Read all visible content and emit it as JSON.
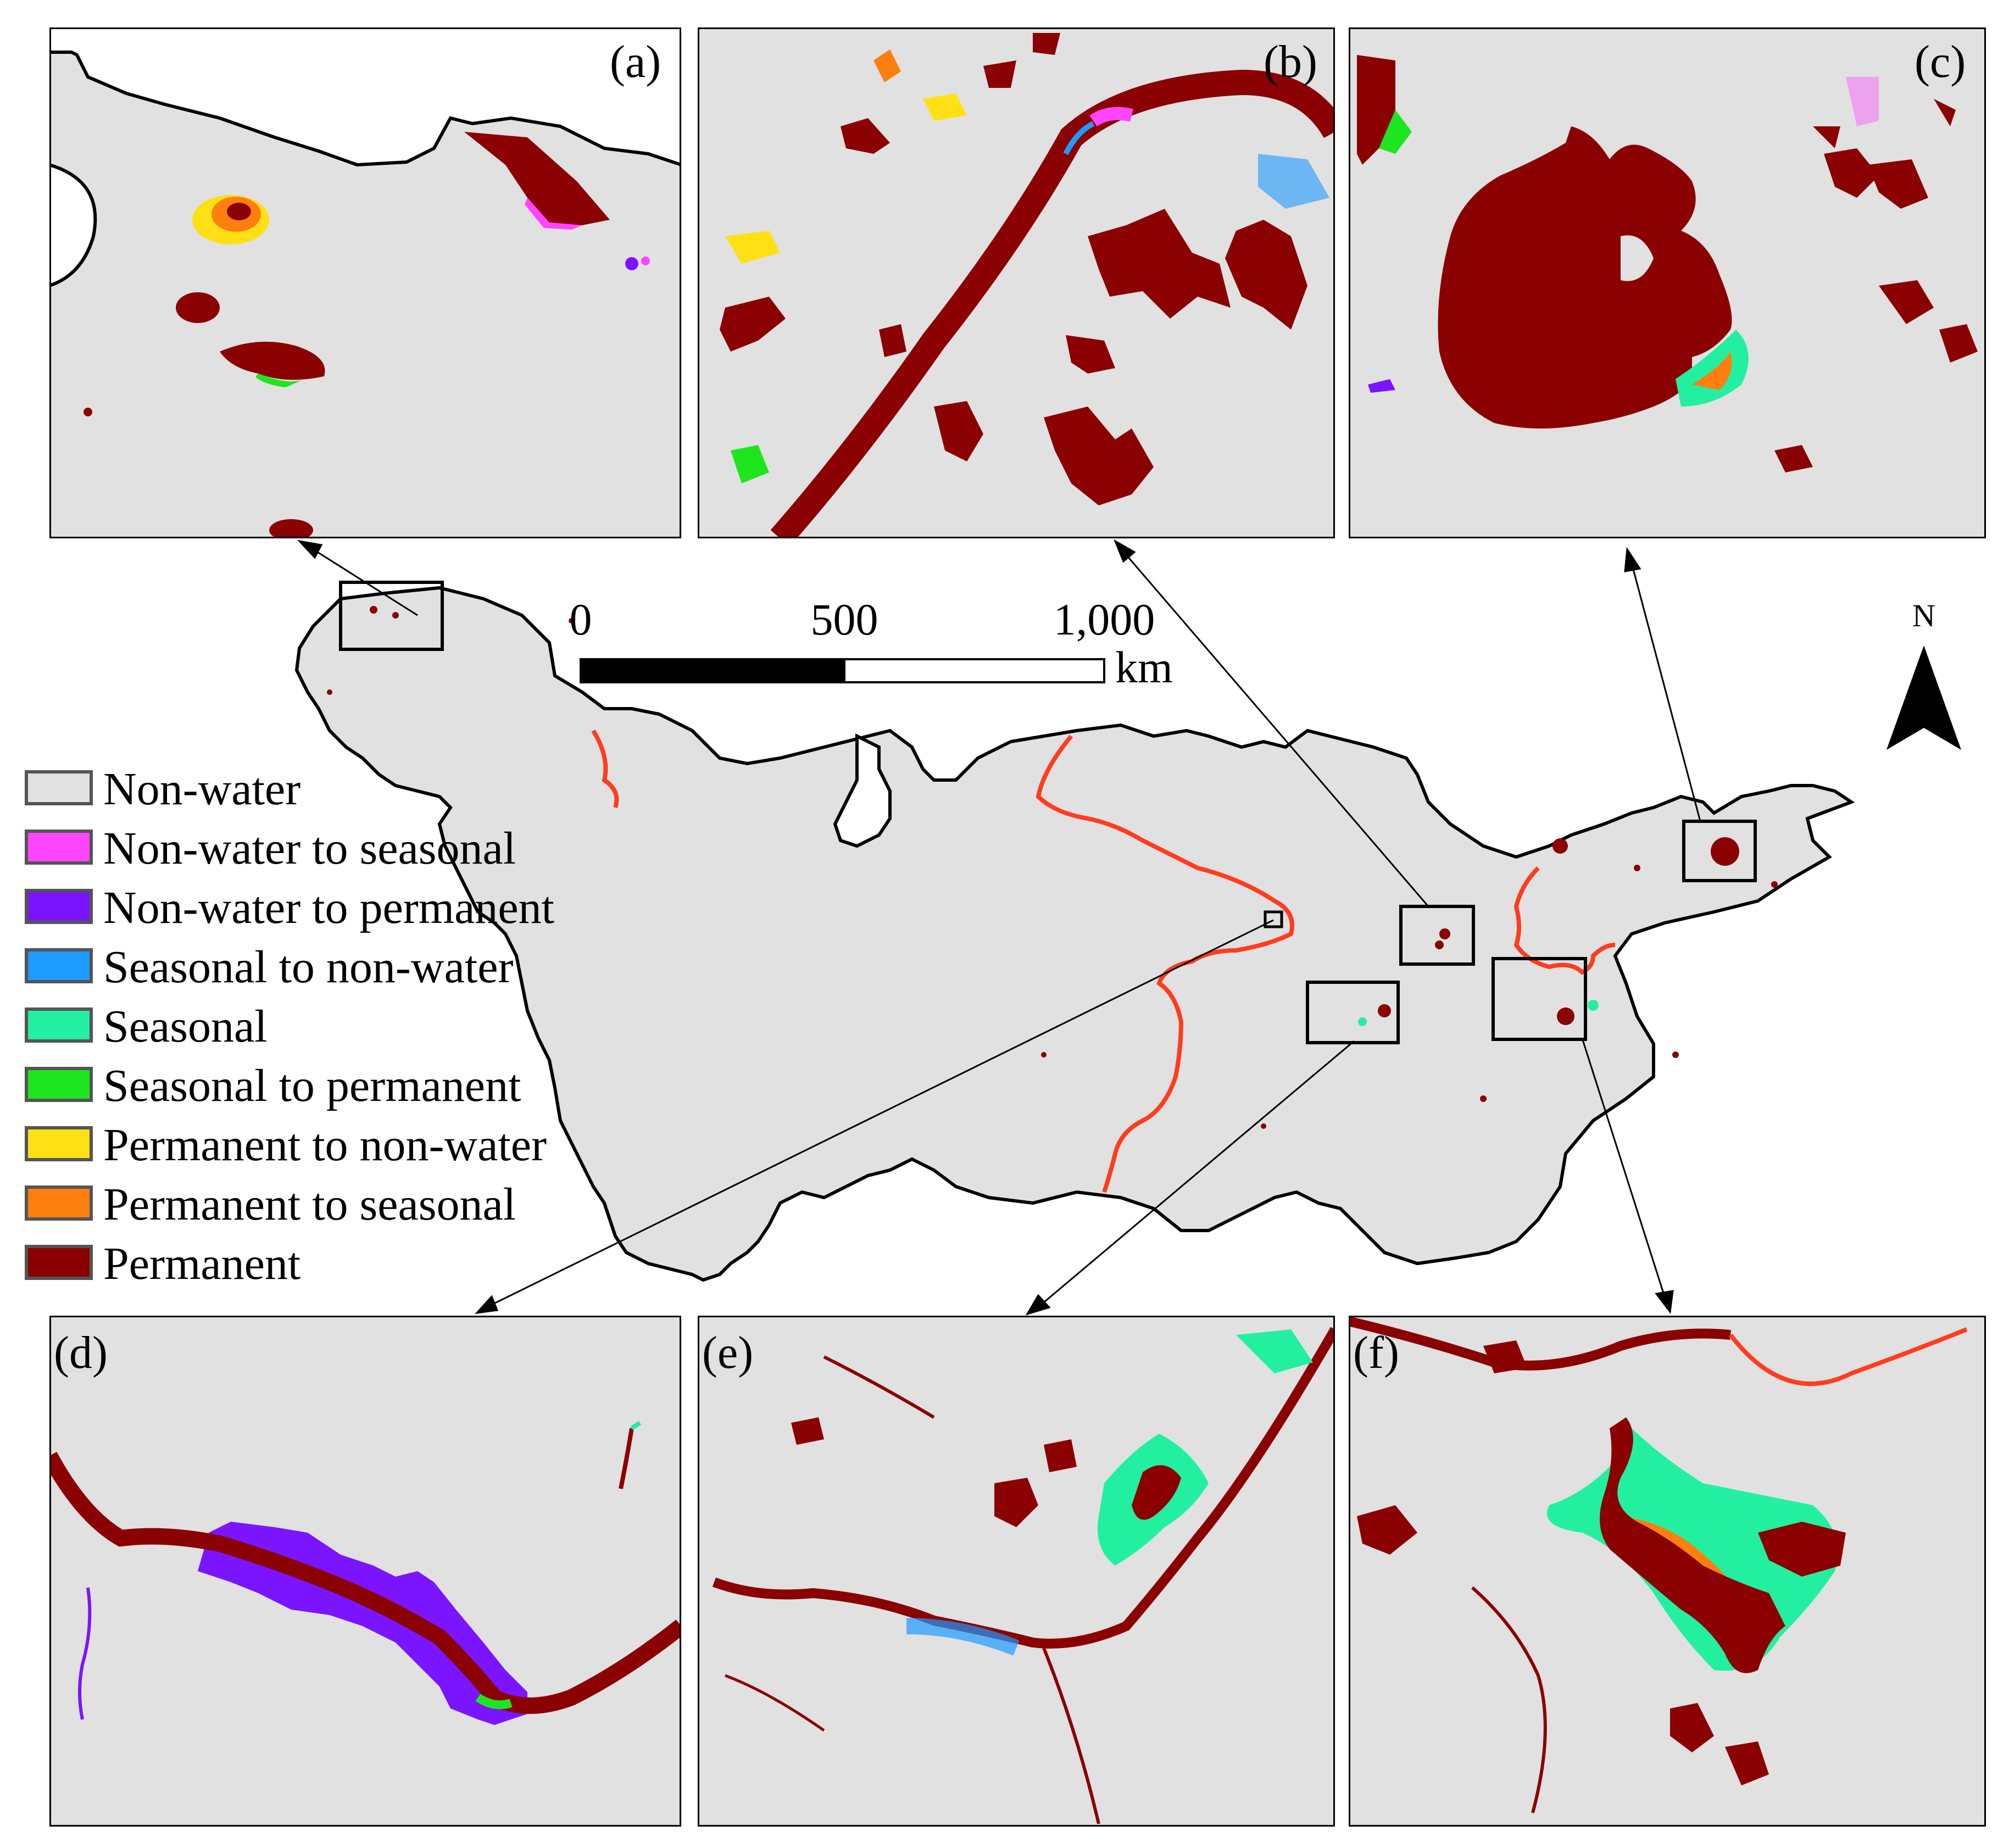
{
  "panels": [
    {
      "id": "a",
      "label": "(a)"
    },
    {
      "id": "b",
      "label": "(b)"
    },
    {
      "id": "c",
      "label": "(c)"
    },
    {
      "id": "d",
      "label": "(d)"
    },
    {
      "id": "e",
      "label": "(e)"
    },
    {
      "id": "f",
      "label": "(f)"
    }
  ],
  "scale_bar": {
    "ticks": [
      "0",
      "500",
      "1,000"
    ],
    "unit": "km"
  },
  "north_arrow": {
    "label": "N"
  },
  "legend": [
    {
      "label": "Non-water",
      "color": "#e1e1e1"
    },
    {
      "label": "Non-water to seasonal",
      "color": "#ff44ff"
    },
    {
      "label": "Non-water to permanent",
      "color": "#7b14ff"
    },
    {
      "label": "Seasonal to non-water",
      "color": "#1e9bff"
    },
    {
      "label": "Seasonal",
      "color": "#22f0a0"
    },
    {
      "label": "Seasonal to permanent",
      "color": "#1ee61e"
    },
    {
      "label": "Permanent to non-water",
      "color": "#ffe014"
    },
    {
      "label": "Permanent to seasonal",
      "color": "#ff7f0e"
    },
    {
      "label": "Permanent",
      "color": "#8b0000"
    }
  ],
  "colors": {
    "basin_fill": "#e1e1e1",
    "boundary": "#000000",
    "river_outline": "#ff3c1e"
  }
}
